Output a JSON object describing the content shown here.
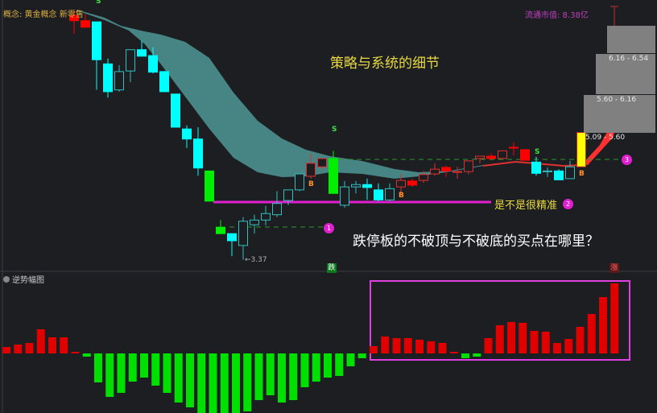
{
  "header": {
    "concept": "概念: 黄金概念 新零售",
    "market_cap": "流通市值: 8.38亿"
  },
  "annotations": {
    "title": "策略与系统的细节",
    "precise": "是不是很精准",
    "question": "跌停板的不破顶与不破底的买点在哪里？",
    "circles": [
      "1",
      "2",
      "3"
    ],
    "low_label": "←3.37",
    "signal_s": "S",
    "signal_b": "B",
    "down_tag": "跌",
    "up_tag": "涨"
  },
  "price_ranges": [
    "6.16 - 6.54",
    "5.60 - 6.16",
    "5.09 - 5.60"
  ],
  "indicator_pane": {
    "label": "逆势幅图"
  },
  "colors": {
    "up": "#ff0000",
    "down_cyan": "#00ffff",
    "limit_down": "#00ee00",
    "highlight": "#ffff00",
    "ribbon": "#4a8a8a",
    "accent": "#e020d0"
  },
  "chart_data": [
    {
      "type": "candlestick",
      "title": "",
      "low_marker": 3.37,
      "candles": [
        {
          "o": 7.41,
          "c": 7.5,
          "h": 7.6,
          "l": 7.19,
          "s": "red"
        },
        {
          "o": 7.3,
          "c": 7.41,
          "h": 7.52,
          "l": 7.3,
          "s": "red"
        },
        {
          "o": 7.39,
          "c": 6.75,
          "h": 7.39,
          "l": 6.24,
          "s": "cyan"
        },
        {
          "o": 6.68,
          "c": 6.21,
          "h": 6.77,
          "l": 6.11,
          "s": "cyan"
        },
        {
          "o": 6.24,
          "c": 6.55,
          "h": 6.66,
          "l": 6.21,
          "s": "cyan-hollow"
        },
        {
          "o": 6.56,
          "c": 6.92,
          "h": 6.92,
          "l": 6.37,
          "s": "cyan-hollow"
        },
        {
          "o": 6.92,
          "c": 6.81,
          "h": 7.07,
          "l": 6.81,
          "s": "cyan"
        },
        {
          "o": 6.82,
          "c": 6.54,
          "h": 6.96,
          "l": 6.52,
          "s": "cyan"
        },
        {
          "o": 6.55,
          "c": 6.21,
          "h": 6.56,
          "l": 6.21,
          "s": "cyan"
        },
        {
          "o": 6.17,
          "c": 5.61,
          "h": 6.17,
          "l": 5.61,
          "s": "cyan"
        },
        {
          "o": 5.58,
          "c": 5.41,
          "h": 5.64,
          "l": 5.26,
          "s": "cyan"
        },
        {
          "o": 5.41,
          "c": 4.92,
          "h": 5.61,
          "l": 4.79,
          "s": "cyan"
        },
        {
          "o": 4.87,
          "c": 4.36,
          "h": 4.87,
          "l": 4.36,
          "s": "green"
        },
        {
          "o": 3.92,
          "c": 3.81,
          "h": 4.04,
          "l": 3.81,
          "s": "green"
        },
        {
          "o": 3.81,
          "c": 3.69,
          "h": 3.81,
          "l": 3.43,
          "s": "cyan"
        },
        {
          "o": 3.61,
          "c": 4.02,
          "h": 4.09,
          "l": 3.37,
          "s": "cyan-hollow"
        },
        {
          "o": 3.96,
          "c": 4.04,
          "h": 4.13,
          "l": 3.81,
          "s": "cyan-hollow"
        },
        {
          "o": 4.04,
          "c": 4.15,
          "h": 4.28,
          "l": 3.95,
          "s": "cyan-hollow"
        },
        {
          "o": 4.13,
          "c": 4.32,
          "h": 4.53,
          "l": 4.09,
          "s": "cyan-hollow"
        },
        {
          "o": 4.37,
          "c": 4.55,
          "h": 4.55,
          "l": 4.29,
          "s": "cyan-hollow"
        },
        {
          "o": 4.55,
          "c": 4.82,
          "h": 4.82,
          "l": 4.53,
          "s": "cyan-hollow"
        },
        {
          "o": 4.78,
          "c": 5.0,
          "h": 5.17,
          "l": 4.74,
          "s": "red-hollow"
        },
        {
          "o": 4.94,
          "c": 5.08,
          "h": 5.08,
          "l": 4.9,
          "s": "red-hollow"
        },
        {
          "o": 5.08,
          "c": 4.49,
          "h": 5.21,
          "l": 4.49,
          "s": "green"
        },
        {
          "o": 4.29,
          "c": 4.6,
          "h": 4.7,
          "l": 4.25,
          "s": "cyan-hollow"
        },
        {
          "o": 4.6,
          "c": 4.64,
          "h": 4.7,
          "l": 4.49,
          "s": "cyan-hollow"
        },
        {
          "o": 4.64,
          "c": 4.59,
          "h": 4.74,
          "l": 4.38,
          "s": "cyan"
        },
        {
          "o": 4.55,
          "c": 4.38,
          "h": 4.66,
          "l": 4.36,
          "s": "cyan"
        },
        {
          "o": 4.38,
          "c": 4.57,
          "h": 4.66,
          "l": 4.36,
          "s": "cyan-hollow"
        },
        {
          "o": 4.6,
          "c": 4.71,
          "h": 4.82,
          "l": 4.49,
          "s": "red-hollow"
        },
        {
          "o": 4.63,
          "c": 4.7,
          "h": 4.74,
          "l": 4.6,
          "s": "red"
        },
        {
          "o": 4.71,
          "c": 4.81,
          "h": 4.87,
          "l": 4.67,
          "s": "red-hollow"
        },
        {
          "o": 4.82,
          "c": 4.9,
          "h": 5.0,
          "l": 4.79,
          "s": "red-hollow"
        },
        {
          "o": 4.87,
          "c": 4.93,
          "h": 4.96,
          "l": 4.77,
          "s": "red"
        },
        {
          "o": 4.85,
          "c": 4.86,
          "h": 4.94,
          "l": 4.74,
          "s": "red-hollow"
        },
        {
          "o": 4.86,
          "c": 5.04,
          "h": 5.04,
          "l": 4.81,
          "s": "red-hollow"
        },
        {
          "o": 5.08,
          "c": 5.12,
          "h": 5.12,
          "l": 5.0,
          "s": "red-hollow"
        },
        {
          "o": 5.08,
          "c": 5.12,
          "h": 5.17,
          "l": 5.05,
          "s": "red"
        },
        {
          "o": 5.08,
          "c": 5.21,
          "h": 5.21,
          "l": 5.08,
          "s": "red-hollow"
        },
        {
          "o": 5.26,
          "c": 5.27,
          "h": 5.35,
          "l": 5.13,
          "s": "red"
        },
        {
          "o": 5.05,
          "c": 5.23,
          "h": 5.23,
          "l": 5.05,
          "s": "red"
        },
        {
          "o": 5.02,
          "c": 4.83,
          "h": 5.11,
          "l": 4.79,
          "s": "cyan"
        },
        {
          "o": 4.87,
          "c": 4.86,
          "h": 4.93,
          "l": 4.77,
          "s": "cyan-hollow"
        },
        {
          "o": 4.87,
          "c": 4.72,
          "h": 4.9,
          "l": 4.72,
          "s": "cyan"
        },
        {
          "o": 4.74,
          "c": 4.94,
          "h": 5.04,
          "l": 4.74,
          "s": "cyan-hollow"
        },
        {
          "o": 4.94,
          "c": 5.52,
          "h": 5.52,
          "l": 4.94,
          "s": "yellow"
        }
      ]
    },
    {
      "type": "bar",
      "title": "逆势幅图",
      "values": [
        8,
        11,
        13,
        30,
        20,
        20,
        2,
        -4,
        -36,
        -54,
        -49,
        -35,
        -30,
        -40,
        -49,
        -61,
        -67,
        -74,
        -74,
        -74,
        -74,
        -72,
        -58,
        -52,
        -61,
        -58,
        -42,
        -35,
        -30,
        -28,
        -16,
        -6,
        9,
        21,
        19,
        19,
        17,
        15,
        13,
        2,
        -6,
        -4,
        19,
        35,
        39,
        38,
        28,
        27,
        13,
        18,
        33,
        49,
        70,
        87
      ]
    }
  ]
}
